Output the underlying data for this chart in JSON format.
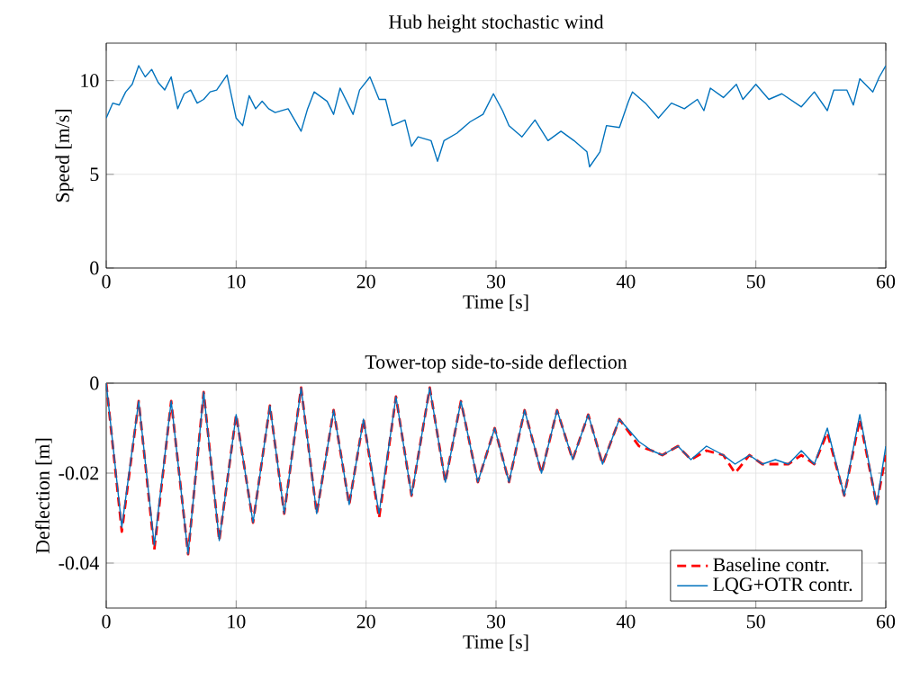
{
  "chart_data": [
    {
      "type": "line",
      "title": "Hub height stochastic wind",
      "xlabel": "Time [s]",
      "ylabel": "Speed [m/s]",
      "xlim": [
        0,
        60
      ],
      "ylim": [
        0,
        12
      ],
      "xticks": [
        0,
        10,
        20,
        30,
        40,
        50,
        60
      ],
      "yticks": [
        0,
        5,
        10
      ],
      "grid": true,
      "line_style": "solid",
      "color": "#0072bd",
      "x": [
        0,
        0.5,
        1,
        1.5,
        2,
        2.5,
        3,
        3.5,
        4,
        4.5,
        5,
        5.5,
        6,
        6.5,
        7,
        7.5,
        8,
        8.5,
        9,
        9.3,
        10,
        10.5,
        11,
        11.5,
        12,
        12.5,
        13,
        14,
        15,
        15.5,
        16,
        17,
        17.5,
        18,
        19,
        19.5,
        20.3,
        21,
        21.5,
        22,
        23,
        23.5,
        24,
        25,
        25.5,
        26,
        27,
        28,
        29,
        29.8,
        30.5,
        31,
        32,
        33,
        34,
        35,
        36,
        37,
        37.2,
        38,
        38.5,
        39.5,
        40.2,
        40.5,
        41.5,
        42.5,
        43.5,
        44.5,
        45.5,
        46,
        46.5,
        47.5,
        48.5,
        49,
        50,
        51,
        52,
        53.5,
        54.5,
        55.5,
        56,
        57,
        57.5,
        58,
        59,
        59.5,
        60
      ],
      "values": [
        8.0,
        8.8,
        8.7,
        9.4,
        9.8,
        10.8,
        10.2,
        10.6,
        9.9,
        9.5,
        10.2,
        8.5,
        9.3,
        9.5,
        8.8,
        9.0,
        9.4,
        9.5,
        10.0,
        10.3,
        8.0,
        7.6,
        9.2,
        8.5,
        8.9,
        8.5,
        8.3,
        8.5,
        7.3,
        8.5,
        9.4,
        8.9,
        8.2,
        9.6,
        8.2,
        9.5,
        10.2,
        9.0,
        9.0,
        7.6,
        7.9,
        6.5,
        7.0,
        6.8,
        5.7,
        6.8,
        7.2,
        7.8,
        8.2,
        9.3,
        8.4,
        7.6,
        7.0,
        7.9,
        6.8,
        7.3,
        6.8,
        6.2,
        5.4,
        6.2,
        7.6,
        7.5,
        8.9,
        9.4,
        8.8,
        8.0,
        8.8,
        8.5,
        9.0,
        8.4,
        9.6,
        9.1,
        9.8,
        9.0,
        9.8,
        9.0,
        9.3,
        8.6,
        9.4,
        8.4,
        9.5,
        9.5,
        8.7,
        10.1,
        9.4,
        10.2,
        10.8
      ]
    },
    {
      "type": "line",
      "title": "Tower-top side-to-side deflection",
      "xlabel": "Time [s]",
      "ylabel": "Deflection [m]",
      "xlim": [
        0,
        60
      ],
      "ylim": [
        -0.05,
        0
      ],
      "xticks": [
        0,
        10,
        20,
        30,
        40,
        50,
        60
      ],
      "yticks": [
        -0.04,
        -0.02,
        0
      ],
      "grid": true,
      "legend": "bottom right",
      "x": [
        0,
        1.2,
        2.5,
        3.7,
        5,
        6.3,
        7.5,
        8.7,
        10,
        11.3,
        12.6,
        13.7,
        15,
        16.2,
        17.5,
        18.7,
        19.8,
        21,
        22.3,
        23.5,
        24.9,
        26.1,
        27.3,
        28.6,
        29.9,
        31,
        32.2,
        33.5,
        34.7,
        35.9,
        37.1,
        38.2,
        39.5,
        41,
        42,
        42.8,
        44,
        45,
        46.2,
        47.5,
        48.4,
        49.5,
        50.5,
        51.5,
        52.5,
        53.5,
        54.5,
        55.5,
        56.8,
        58,
        59.3,
        60
      ],
      "series": [
        {
          "name": "Baseline contr.",
          "color": "#ff0000",
          "line_style": "dashed",
          "values": [
            0,
            -0.033,
            -0.004,
            -0.037,
            -0.004,
            -0.038,
            -0.002,
            -0.035,
            -0.007,
            -0.031,
            -0.005,
            -0.029,
            -0.001,
            -0.029,
            -0.006,
            -0.027,
            -0.008,
            -0.03,
            -0.003,
            -0.025,
            -0.001,
            -0.022,
            -0.004,
            -0.022,
            -0.01,
            -0.022,
            -0.006,
            -0.02,
            -0.006,
            -0.017,
            -0.007,
            -0.018,
            -0.008,
            -0.014,
            -0.015,
            -0.016,
            -0.014,
            -0.017,
            -0.015,
            -0.016,
            -0.02,
            -0.016,
            -0.018,
            -0.018,
            -0.018,
            -0.016,
            -0.018,
            -0.011,
            -0.025,
            -0.008,
            -0.027,
            -0.016
          ]
        },
        {
          "name": "LQG+OTR contr.",
          "color": "#0072bd",
          "line_style": "solid",
          "values": [
            0,
            -0.032,
            -0.004,
            -0.036,
            -0.004,
            -0.038,
            -0.002,
            -0.035,
            -0.007,
            -0.031,
            -0.005,
            -0.029,
            -0.001,
            -0.029,
            -0.006,
            -0.027,
            -0.008,
            -0.029,
            -0.003,
            -0.025,
            -0.001,
            -0.022,
            -0.004,
            -0.022,
            -0.01,
            -0.022,
            -0.006,
            -0.02,
            -0.006,
            -0.017,
            -0.007,
            -0.018,
            -0.008,
            -0.013,
            -0.015,
            -0.016,
            -0.014,
            -0.017,
            -0.014,
            -0.016,
            -0.018,
            -0.016,
            -0.018,
            -0.017,
            -0.018,
            -0.015,
            -0.018,
            -0.01,
            -0.025,
            -0.007,
            -0.027,
            -0.014
          ]
        }
      ]
    }
  ]
}
